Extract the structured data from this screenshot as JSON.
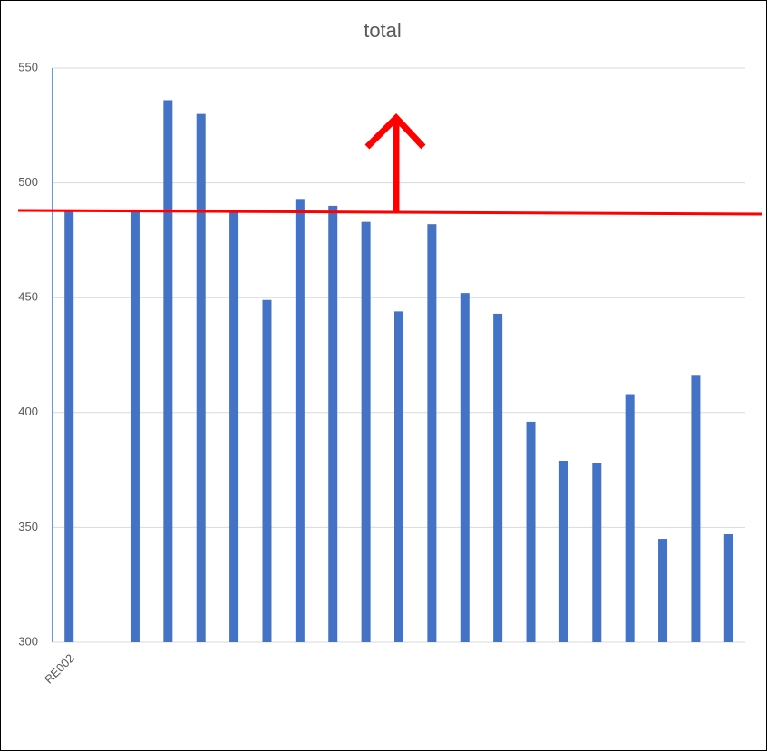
{
  "chart_data": {
    "type": "bar",
    "title": "total",
    "categories": [
      "RE002",
      null,
      null,
      null,
      null,
      null,
      null,
      null,
      null,
      null,
      null,
      null,
      null,
      null,
      null,
      null,
      null,
      null,
      null,
      null,
      null
    ],
    "values": [
      488,
      null,
      488,
      536,
      530,
      488,
      449,
      493,
      490,
      483,
      444,
      482,
      452,
      443,
      396,
      379,
      378,
      408,
      345,
      416,
      347
    ],
    "color": "#4472c4",
    "ylim": [
      300,
      550
    ],
    "yticks": [
      300,
      350,
      400,
      450,
      500,
      550
    ],
    "grid": true
  }
}
